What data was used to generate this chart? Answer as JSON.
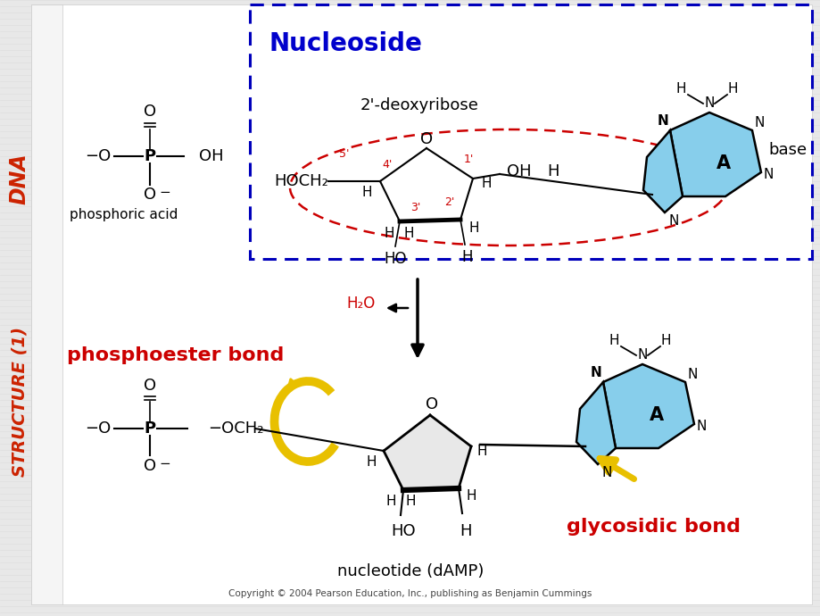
{
  "bg_color": "#e8e8e8",
  "main_bg": "#ffffff",
  "side_bg": "#f0f0f0",
  "title": "Nucleoside",
  "title_color": "#0000CC",
  "title_fontsize": 20,
  "side_label_line1": "DNA",
  "side_label_line2": "STRUCTURE (1)",
  "side_label_color": "#CC2200",
  "nucleoside_box_color": "#0000BB",
  "phosphoric_label": "phosphoric acid",
  "deoxyribose_label": "2'-deoxyribose",
  "base_label": "base",
  "phosphoester_label": "phosphoester bond",
  "phosphoester_color": "#CC0000",
  "glycosidic_label": "glycosidic bond",
  "glycosidic_color": "#CC0000",
  "h2o_label": "H₂O",
  "h2o_color": "#CC0000",
  "nucleotide_label": "nucleotide (dAMP)",
  "copyright_label": "Copyright © 2004 Pearson Education, Inc., publishing as Benjamin Cummings",
  "adenine_color": "#87CEEB",
  "dashed_oval_color": "#CC0000",
  "arrow_color": "#000000",
  "yellow_color": "#E8C000",
  "line_color": "#000000"
}
